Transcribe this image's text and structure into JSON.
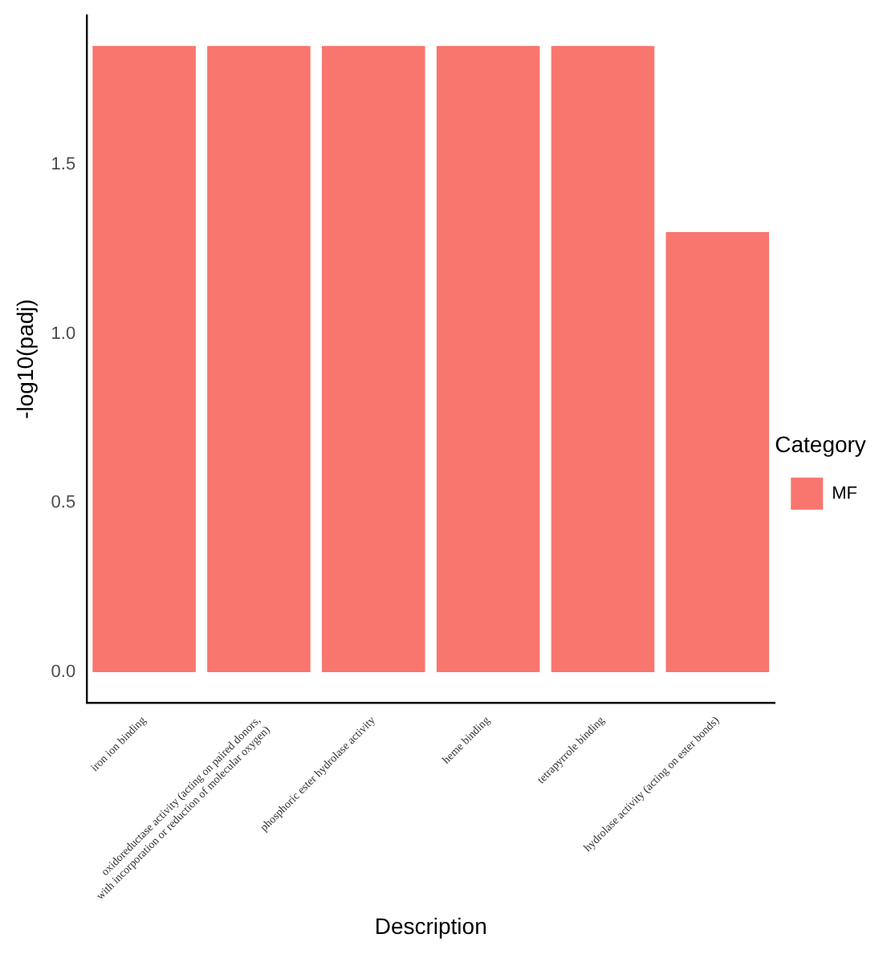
{
  "chart_data": {
    "type": "bar",
    "xlabel": "Description",
    "ylabel": "-log10(padj)",
    "legend_title": "Category",
    "categories": [
      "iron ion binding",
      "oxidoreductase activity (acting on paired donors,\nwith incorporation or reduction of molecular oxygen)",
      "phosphoric ester hydrolase activity",
      "heme binding",
      "tetrapyrrole binding",
      "hydrolase activity (acting on ester bonds)"
    ],
    "series": [
      {
        "name": "MF",
        "color": "#f8766d",
        "values": [
          1.85,
          1.85,
          1.85,
          1.85,
          1.85,
          1.3
        ]
      }
    ],
    "ylim": [
      -0.09,
      1.94
    ],
    "yticks": [
      {
        "value": 0,
        "label": "0.0"
      },
      {
        "value": 0.5,
        "label": "0.5"
      },
      {
        "value": 1,
        "label": "1.0"
      },
      {
        "value": 1.5,
        "label": "1.5"
      }
    ],
    "grid": false,
    "legend": "right"
  }
}
